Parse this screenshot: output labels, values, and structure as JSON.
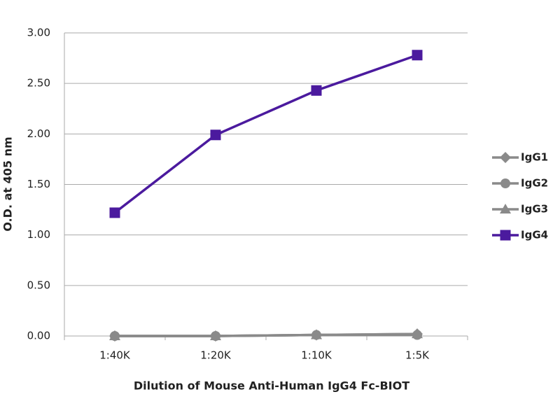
{
  "chart_data": {
    "type": "line",
    "x_label": "Dilution of Mouse Anti-Human IgG4 Fc-BIOT",
    "y_label": "O.D. at 405 nm",
    "categories": [
      "1:40K",
      "1:20K",
      "1:10K",
      "1:5K"
    ],
    "series": [
      {
        "name": "IgG1",
        "color": "#8a8a8a",
        "marker": "diamond",
        "values": [
          0,
          0,
          0.01,
          0.02
        ]
      },
      {
        "name": "IgG2",
        "color": "#8a8a8a",
        "marker": "circle",
        "values": [
          0,
          0,
          0.01,
          0.01
        ]
      },
      {
        "name": "IgG3",
        "color": "#8a8a8a",
        "marker": "triangle",
        "values": [
          0,
          0,
          0.01,
          0.02
        ]
      },
      {
        "name": "IgG4",
        "color": "#4b1a9e",
        "marker": "square",
        "values": [
          1.22,
          1.99,
          2.43,
          2.78
        ]
      }
    ],
    "ylim": [
      0,
      3
    ],
    "yticks": [
      {
        "value": 0,
        "label": "0.00"
      },
      {
        "value": 0.5,
        "label": "0.50"
      },
      {
        "value": 1,
        "label": "1.00"
      },
      {
        "value": 1.5,
        "label": "1.50"
      },
      {
        "value": 2,
        "label": "2.00"
      },
      {
        "value": 2.5,
        "label": "2.50"
      },
      {
        "value": 3,
        "label": "3.00"
      }
    ],
    "grid": true,
    "legend": "right"
  }
}
